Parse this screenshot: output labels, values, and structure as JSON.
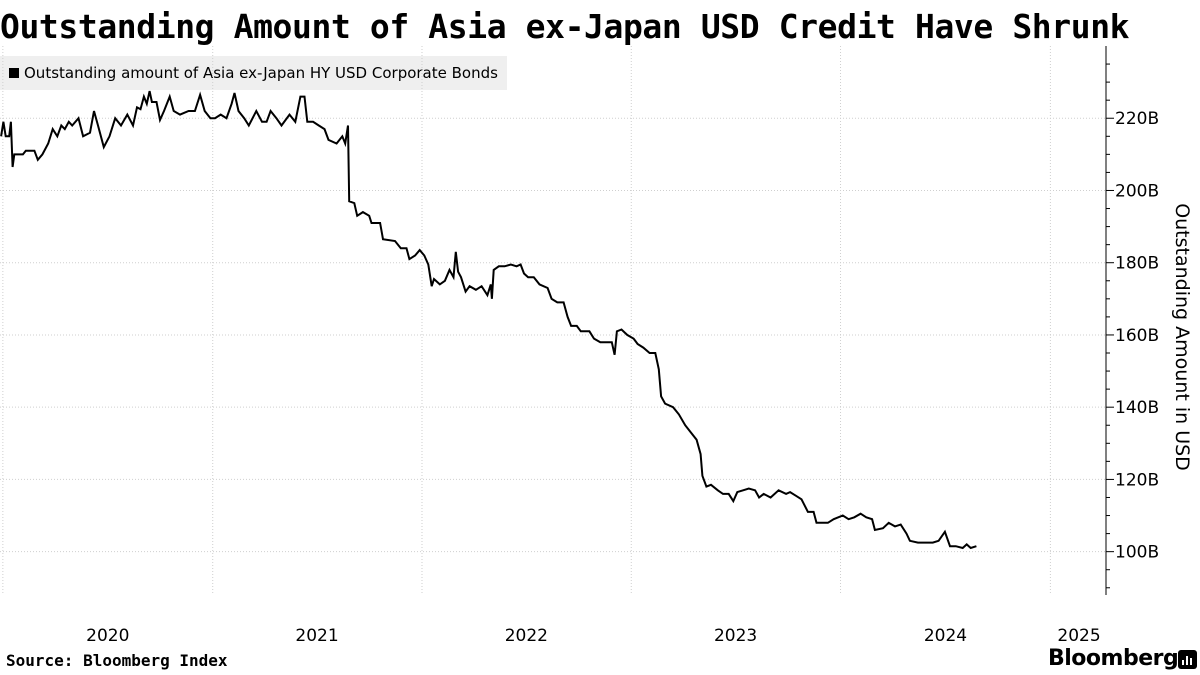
{
  "header": {
    "title": "Outstanding Amount of Asia ex-Japan USD Credit Have Shrunk"
  },
  "footer": {
    "source": "Source: Bloomberg Index",
    "brand": "Bloomberg"
  },
  "colors": {
    "line": "#000000",
    "grid": "#cfcfcf",
    "legend_bg": "#efefef"
  },
  "icons": {
    "brand": "bloomberg-chart-icon"
  },
  "chart_data": {
    "type": "line",
    "title": "Outstanding Amount of Asia ex-Japan USD Credit Have Shrunk",
    "ylabel": "Outstanding Amount in USD",
    "xlabel": "",
    "legend": "top-left",
    "grid": true,
    "ylim": [
      88,
      240
    ],
    "y_ticks": [
      100,
      120,
      140,
      160,
      180,
      200,
      220
    ],
    "y_tick_labels": [
      "100B",
      "120B",
      "140B",
      "160B",
      "180B",
      "200B",
      "220B"
    ],
    "x_ticks": [
      "2020",
      "2021",
      "2022",
      "2023",
      "2024",
      "2025"
    ],
    "series": [
      {
        "name": "Outstanding amount of Asia ex-Japan HY USD Corporate Bonds",
        "unit": "USD billions",
        "points": [
          [
            "2019-12-29",
            215.0
          ],
          [
            "2020-01-02",
            219.0
          ],
          [
            "2020-01-06",
            215.0
          ],
          [
            "2020-01-12",
            215.0
          ],
          [
            "2020-01-15",
            219.0
          ],
          [
            "2020-01-18",
            206.5
          ],
          [
            "2020-01-21",
            210.0
          ],
          [
            "2020-02-05",
            210.0
          ],
          [
            "2020-02-10",
            211.0
          ],
          [
            "2020-02-25",
            211.0
          ],
          [
            "2020-03-02",
            208.5
          ],
          [
            "2020-03-10",
            210.0
          ],
          [
            "2020-03-20",
            213.0
          ],
          [
            "2020-03-28",
            217.0
          ],
          [
            "2020-04-05",
            215.0
          ],
          [
            "2020-04-12",
            218.0
          ],
          [
            "2020-04-18",
            217.0
          ],
          [
            "2020-04-25",
            219.0
          ],
          [
            "2020-05-01",
            218.0
          ],
          [
            "2020-05-12",
            220.0
          ],
          [
            "2020-05-20",
            215.0
          ],
          [
            "2020-06-01",
            216.0
          ],
          [
            "2020-06-08",
            222.0
          ],
          [
            "2020-06-15",
            218.0
          ],
          [
            "2020-06-25",
            212.0
          ],
          [
            "2020-07-05",
            215.0
          ],
          [
            "2020-07-15",
            220.0
          ],
          [
            "2020-07-25",
            218.0
          ],
          [
            "2020-08-05",
            221.0
          ],
          [
            "2020-08-15",
            218.0
          ],
          [
            "2020-08-22",
            223.0
          ],
          [
            "2020-08-28",
            222.5
          ],
          [
            "2020-09-03",
            226.0
          ],
          [
            "2020-09-08",
            224.0
          ],
          [
            "2020-09-13",
            227.5
          ],
          [
            "2020-09-17",
            224.5
          ],
          [
            "2020-09-25",
            224.5
          ],
          [
            "2020-10-01",
            219.5
          ],
          [
            "2020-10-08",
            222.0
          ],
          [
            "2020-10-18",
            226.0
          ],
          [
            "2020-10-25",
            222.0
          ],
          [
            "2020-11-05",
            221.0
          ],
          [
            "2020-11-20",
            222.0
          ],
          [
            "2020-12-01",
            222.0
          ],
          [
            "2020-12-10",
            226.5
          ],
          [
            "2020-12-18",
            222.0
          ],
          [
            "2020-12-28",
            220.0
          ],
          [
            "2021-01-05",
            220.0
          ],
          [
            "2021-01-15",
            221.0
          ],
          [
            "2021-01-25",
            220.0
          ],
          [
            "2021-02-03",
            224.0
          ],
          [
            "2021-02-08",
            227.0
          ],
          [
            "2021-02-15",
            222.0
          ],
          [
            "2021-02-25",
            220.0
          ],
          [
            "2021-03-05",
            218.0
          ],
          [
            "2021-03-18",
            222.0
          ],
          [
            "2021-03-28",
            219.0
          ],
          [
            "2021-04-05",
            219.0
          ],
          [
            "2021-04-12",
            222.0
          ],
          [
            "2021-04-22",
            220.0
          ],
          [
            "2021-05-01",
            218.0
          ],
          [
            "2021-05-15",
            221.0
          ],
          [
            "2021-05-25",
            219.0
          ],
          [
            "2021-06-03",
            226.0
          ],
          [
            "2021-06-10",
            226.0
          ],
          [
            "2021-06-15",
            219.0
          ],
          [
            "2021-06-25",
            219.0
          ],
          [
            "2021-07-05",
            218.0
          ],
          [
            "2021-07-15",
            217.0
          ],
          [
            "2021-07-22",
            214.0
          ],
          [
            "2021-08-05",
            213.0
          ],
          [
            "2021-08-15",
            215.0
          ],
          [
            "2021-08-20",
            213.0
          ],
          [
            "2021-08-25",
            218.0
          ],
          [
            "2021-08-27",
            197.0
          ],
          [
            "2021-09-05",
            196.5
          ],
          [
            "2021-09-10",
            193.0
          ],
          [
            "2021-09-20",
            194.0
          ],
          [
            "2021-10-01",
            193.0
          ],
          [
            "2021-10-05",
            191.0
          ],
          [
            "2021-10-20",
            191.0
          ],
          [
            "2021-10-25",
            186.5
          ],
          [
            "2021-11-15",
            186.0
          ],
          [
            "2021-11-25",
            184.0
          ],
          [
            "2021-12-05",
            184.0
          ],
          [
            "2021-12-10",
            181.0
          ],
          [
            "2021-12-20",
            182.0
          ],
          [
            "2021-12-28",
            183.5
          ],
          [
            "2022-01-05",
            182.0
          ],
          [
            "2022-01-12",
            179.5
          ],
          [
            "2022-01-18",
            173.5
          ],
          [
            "2022-01-22",
            175.5
          ],
          [
            "2022-02-01",
            174.0
          ],
          [
            "2022-02-10",
            175.0
          ],
          [
            "2022-02-18",
            178.0
          ],
          [
            "2022-02-25",
            176.0
          ],
          [
            "2022-03-01",
            183.0
          ],
          [
            "2022-03-05",
            177.5
          ],
          [
            "2022-03-10",
            176.0
          ],
          [
            "2022-03-18",
            172.0
          ],
          [
            "2022-03-25",
            173.5
          ],
          [
            "2022-04-05",
            172.5
          ],
          [
            "2022-04-15",
            173.5
          ],
          [
            "2022-04-25",
            171.0
          ],
          [
            "2022-05-01",
            174.0
          ],
          [
            "2022-05-03",
            170.0
          ],
          [
            "2022-05-06",
            178.0
          ],
          [
            "2022-05-15",
            179.0
          ],
          [
            "2022-05-25",
            179.0
          ],
          [
            "2022-06-05",
            179.5
          ],
          [
            "2022-06-15",
            179.0
          ],
          [
            "2022-06-22",
            179.5
          ],
          [
            "2022-06-28",
            177.0
          ],
          [
            "2022-07-05",
            176.0
          ],
          [
            "2022-07-15",
            176.0
          ],
          [
            "2022-07-25",
            174.0
          ],
          [
            "2022-08-08",
            173.0
          ],
          [
            "2022-08-15",
            170.0
          ],
          [
            "2022-08-25",
            169.0
          ],
          [
            "2022-09-05",
            169.0
          ],
          [
            "2022-09-12",
            165.0
          ],
          [
            "2022-09-18",
            162.5
          ],
          [
            "2022-09-28",
            162.5
          ],
          [
            "2022-10-05",
            161.0
          ],
          [
            "2022-10-20",
            161.0
          ],
          [
            "2022-10-28",
            159.0
          ],
          [
            "2022-11-08",
            158.0
          ],
          [
            "2022-11-28",
            158.0
          ],
          [
            "2022-12-03",
            154.5
          ],
          [
            "2022-12-07",
            161.0
          ],
          [
            "2022-12-15",
            161.5
          ],
          [
            "2022-12-25",
            160.0
          ],
          [
            "2023-01-05",
            159.0
          ],
          [
            "2023-01-12",
            157.5
          ],
          [
            "2023-01-22",
            156.5
          ],
          [
            "2023-02-02",
            155.0
          ],
          [
            "2023-02-12",
            155.0
          ],
          [
            "2023-02-18",
            150.5
          ],
          [
            "2023-02-22",
            143.0
          ],
          [
            "2023-03-01",
            141.0
          ],
          [
            "2023-03-15",
            140.0
          ],
          [
            "2023-03-25",
            138.0
          ],
          [
            "2023-04-05",
            135.0
          ],
          [
            "2023-04-15",
            133.0
          ],
          [
            "2023-04-25",
            131.0
          ],
          [
            "2023-05-02",
            127.0
          ],
          [
            "2023-05-05",
            121.0
          ],
          [
            "2023-05-12",
            118.0
          ],
          [
            "2023-05-20",
            118.5
          ],
          [
            "2023-06-01",
            117.0
          ],
          [
            "2023-06-10",
            116.0
          ],
          [
            "2023-06-20",
            116.0
          ],
          [
            "2023-06-28",
            114.0
          ],
          [
            "2023-07-05",
            116.5
          ],
          [
            "2023-07-15",
            117.0
          ],
          [
            "2023-07-25",
            117.5
          ],
          [
            "2023-08-05",
            117.0
          ],
          [
            "2023-08-12",
            115.0
          ],
          [
            "2023-08-20",
            116.0
          ],
          [
            "2023-09-01",
            115.0
          ],
          [
            "2023-09-15",
            117.0
          ],
          [
            "2023-09-28",
            116.0
          ],
          [
            "2023-10-05",
            116.5
          ],
          [
            "2023-10-15",
            115.5
          ],
          [
            "2023-10-25",
            114.5
          ],
          [
            "2023-11-05",
            111.0
          ],
          [
            "2023-11-15",
            111.0
          ],
          [
            "2023-11-20",
            108.0
          ],
          [
            "2023-12-10",
            108.0
          ],
          [
            "2023-12-20",
            109.0
          ],
          [
            "2024-01-05",
            110.0
          ],
          [
            "2024-01-15",
            109.0
          ],
          [
            "2024-01-25",
            109.5
          ],
          [
            "2024-02-05",
            110.5
          ],
          [
            "2024-02-15",
            109.5
          ],
          [
            "2024-02-25",
            109.0
          ],
          [
            "2024-03-01",
            106.0
          ],
          [
            "2024-03-15",
            106.5
          ],
          [
            "2024-03-25",
            108.0
          ],
          [
            "2024-04-05",
            107.0
          ],
          [
            "2024-04-15",
            107.5
          ],
          [
            "2024-04-25",
            105.0
          ],
          [
            "2024-05-01",
            103.0
          ],
          [
            "2024-05-15",
            102.5
          ],
          [
            "2024-05-25",
            102.5
          ],
          [
            "2024-06-10",
            102.5
          ],
          [
            "2024-06-20",
            103.0
          ],
          [
            "2024-07-01",
            105.5
          ],
          [
            "2024-07-10",
            101.5
          ],
          [
            "2024-07-20",
            101.5
          ],
          [
            "2024-08-01",
            101.0
          ],
          [
            "2024-08-08",
            102.0
          ],
          [
            "2024-08-15",
            101.0
          ],
          [
            "2024-08-25",
            101.5
          ]
        ]
      }
    ]
  }
}
